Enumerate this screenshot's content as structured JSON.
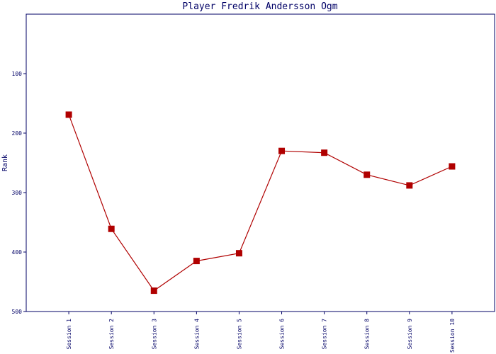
{
  "chart_data": {
    "type": "line",
    "title": "Player Fredrik Andersson Ogm",
    "y_label": "Rank",
    "categories": [
      "Session 1",
      "Session 2",
      "Session 3",
      "Session 4",
      "Session 5",
      "Session 6",
      "Session 7",
      "Session 8",
      "Session 9",
      "Session 10"
    ],
    "series": [
      {
        "name": "Rank",
        "color": "#b00000",
        "values": [
          169,
          361,
          465,
          415,
          402,
          230,
          233,
          270,
          288,
          256
        ]
      }
    ],
    "ylim": [
      0,
      500
    ],
    "y_inverted": true,
    "yticks": [
      100,
      200,
      300,
      400,
      500
    ]
  }
}
